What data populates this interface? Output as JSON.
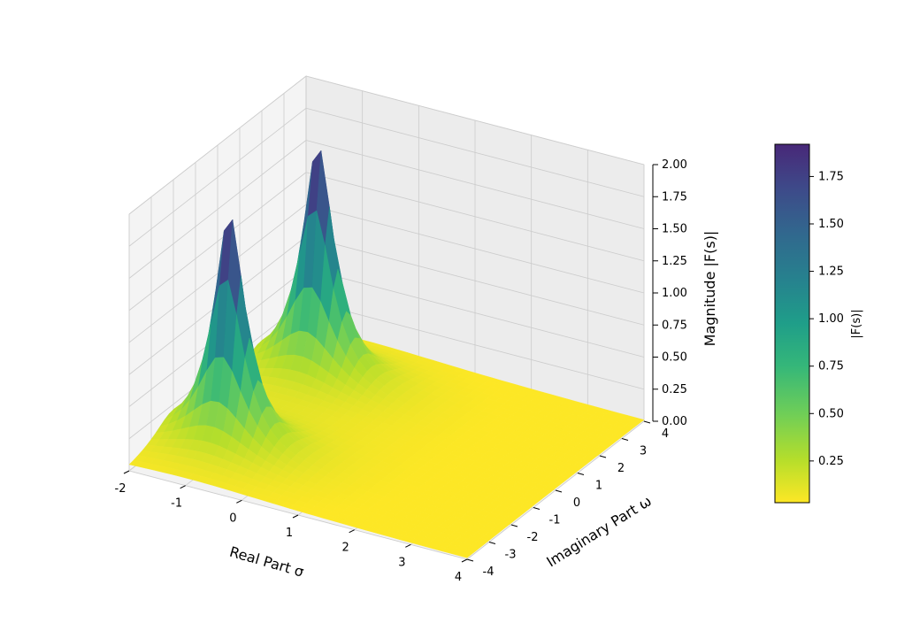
{
  "chart_data": {
    "type": "surface3d",
    "title": "",
    "x_axis": {
      "label": "Real Part σ",
      "range": [
        -2,
        4
      ],
      "ticks": [
        -2,
        -1,
        0,
        1,
        2,
        3,
        4
      ],
      "tick_labels": [
        "-2",
        "-1",
        "0",
        "1",
        "2",
        "3",
        "4"
      ]
    },
    "y_axis": {
      "label": "Imaginary Part ω",
      "range": [
        -4,
        4
      ],
      "ticks": [
        -4,
        -3,
        -2,
        -1,
        0,
        1,
        2,
        3,
        4
      ],
      "tick_labels": [
        "-4",
        "-3",
        "-2",
        "-1",
        "0",
        "1",
        "2",
        "3",
        "4"
      ]
    },
    "z_axis": {
      "label": "Magnitude |F(s)|",
      "range": [
        0,
        2
      ],
      "ticks": [
        0,
        0.25,
        0.5,
        0.75,
        1,
        1.25,
        1.5,
        1.75,
        2
      ],
      "tick_labels": [
        "0.00",
        "0.25",
        "0.50",
        "0.75",
        "1.00",
        "1.25",
        "1.50",
        "1.75",
        "2.00"
      ]
    },
    "colorbar": {
      "label": "|F(s)|",
      "range": [
        0.03,
        1.92
      ],
      "ticks": [
        0.25,
        0.5,
        0.75,
        1,
        1.25,
        1.5,
        1.75
      ],
      "tick_labels": [
        "0.25",
        "0.50",
        "0.75",
        "1.00",
        "1.25",
        "1.50",
        "1.75"
      ],
      "colormap": "viridis_r"
    },
    "peaks": [
      {
        "sigma": -1,
        "omega": 2,
        "magnitude": 1.92
      },
      {
        "sigma": -1,
        "omega": -2,
        "magnitude": 1.92
      }
    ],
    "grid": true,
    "colors": {
      "pane": "#f2f2f2",
      "grid": "#cccccc",
      "low": "#fde725",
      "mid": "#21918c",
      "high": "#440154"
    }
  }
}
